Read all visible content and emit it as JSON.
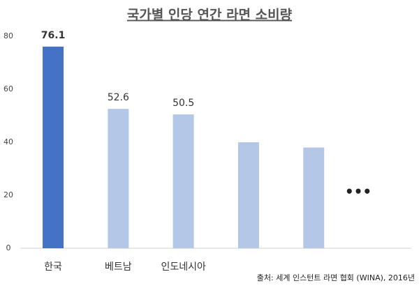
{
  "chart_data": {
    "type": "bar",
    "title": "국가별 인당 연간 라면 소비량",
    "categories": [
      "한국",
      "베트남",
      "인도네시아",
      null,
      null
    ],
    "values": [
      76.1,
      52.6,
      50.5,
      40,
      38
    ],
    "value_labels": [
      "76.1",
      "52.6",
      "50.5",
      null,
      null
    ],
    "colors": [
      "#4472c4",
      "#b4c7e7",
      "#b4c7e7",
      "#b4c7e7",
      "#b4c7e7"
    ],
    "ylim": [
      0,
      80
    ],
    "yticks": [
      0,
      20,
      40,
      60,
      80
    ],
    "grid": false,
    "annotations": [
      "•••"
    ],
    "source": "출처: 세계 인스턴트 라면 협회 (WINA), 2016년"
  }
}
